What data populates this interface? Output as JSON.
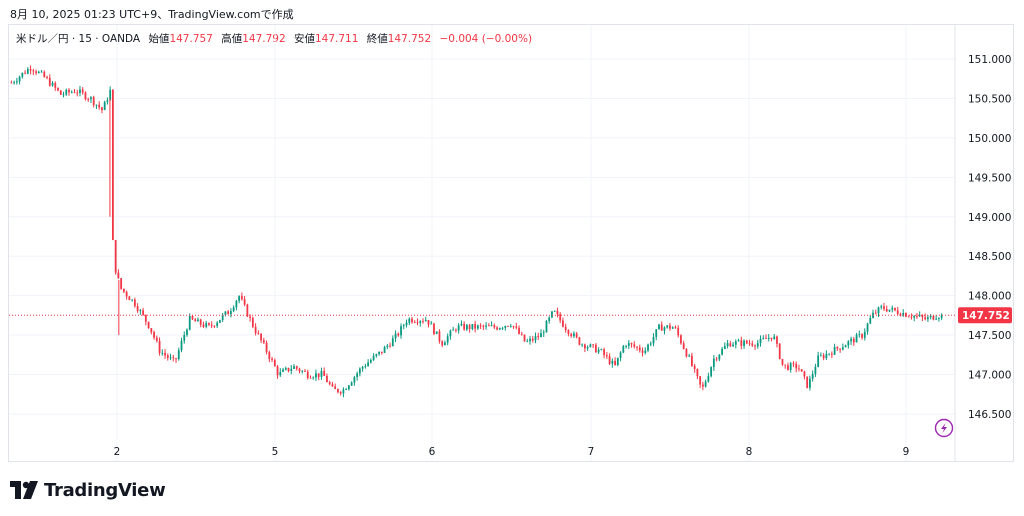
{
  "created_line": "8月 10, 2025 01:23 UTC+9、TradingView.comで作成",
  "legend": {
    "symbol": "米ドル／円 · 15 · OANDA",
    "open_label": "始値",
    "open": "147.757",
    "high_label": "高値",
    "high": "147.792",
    "low_label": "安値",
    "low": "147.711",
    "close_label": "終値",
    "close": "147.752",
    "change": "−0.004 (−0.00%)"
  },
  "brand": "TradingView",
  "colors": {
    "up": "#089981",
    "down": "#f23645",
    "grid": "#f0f3fa",
    "price_tag": "#f23645"
  },
  "icons": {
    "lightning": "lightning-icon",
    "logo": "tradingview-logo-icon"
  },
  "chart_data": {
    "type": "candlestick",
    "title": "",
    "xlabel": "",
    "ylabel": "",
    "ylim": [
      146.25,
      151.2
    ],
    "y_ticks": [
      "151.000",
      "150.500",
      "150.000",
      "149.500",
      "149.000",
      "148.500",
      "148.000",
      "147.500",
      "147.000",
      "146.500"
    ],
    "x_ticks": [
      "2",
      "5",
      "6",
      "7",
      "8",
      "9"
    ],
    "last_price": "147.752",
    "grid": true,
    "series_path": [
      [
        0,
        150.7
      ],
      [
        20,
        150.9
      ],
      [
        35,
        150.75
      ],
      [
        50,
        150.55
      ],
      [
        65,
        150.6
      ],
      [
        80,
        150.5
      ],
      [
        92,
        150.35
      ],
      [
        100,
        150.6
      ],
      [
        101,
        149.0
      ],
      [
        104,
        148.4
      ],
      [
        110,
        148.1
      ],
      [
        125,
        147.9
      ],
      [
        140,
        147.6
      ],
      [
        150,
        147.3
      ],
      [
        165,
        147.15
      ],
      [
        180,
        147.7
      ],
      [
        200,
        147.6
      ],
      [
        220,
        147.8
      ],
      [
        230,
        148.0
      ],
      [
        245,
        147.6
      ],
      [
        260,
        147.25
      ],
      [
        270,
        147.0
      ],
      [
        285,
        147.1
      ],
      [
        300,
        147.0
      ],
      [
        315,
        147.0
      ],
      [
        325,
        146.8
      ],
      [
        335,
        146.8
      ],
      [
        355,
        147.1
      ],
      [
        375,
        147.3
      ],
      [
        390,
        147.5
      ],
      [
        400,
        147.7
      ],
      [
        420,
        147.7
      ],
      [
        435,
        147.4
      ],
      [
        450,
        147.6
      ],
      [
        470,
        147.6
      ],
      [
        490,
        147.6
      ],
      [
        505,
        147.65
      ],
      [
        520,
        147.4
      ],
      [
        535,
        147.5
      ],
      [
        548,
        147.8
      ],
      [
        560,
        147.6
      ],
      [
        575,
        147.4
      ],
      [
        595,
        147.3
      ],
      [
        610,
        147.1
      ],
      [
        620,
        147.4
      ],
      [
        640,
        147.3
      ],
      [
        655,
        147.6
      ],
      [
        670,
        147.6
      ],
      [
        685,
        147.2
      ],
      [
        698,
        146.8
      ],
      [
        710,
        147.2
      ],
      [
        725,
        147.4
      ],
      [
        740,
        147.4
      ],
      [
        755,
        147.4
      ],
      [
        770,
        147.5
      ],
      [
        780,
        147.1
      ],
      [
        795,
        147.1
      ],
      [
        805,
        146.85
      ],
      [
        815,
        147.2
      ],
      [
        830,
        147.3
      ],
      [
        845,
        147.4
      ],
      [
        860,
        147.5
      ],
      [
        870,
        147.75
      ],
      [
        880,
        147.85
      ],
      [
        895,
        147.8
      ],
      [
        910,
        147.75
      ],
      [
        925,
        147.7
      ],
      [
        935,
        147.75
      ],
      [
        943,
        147.752
      ]
    ],
    "note_spikes": [
      [
        101,
        149.0
      ],
      [
        110,
        147.5
      ]
    ]
  }
}
